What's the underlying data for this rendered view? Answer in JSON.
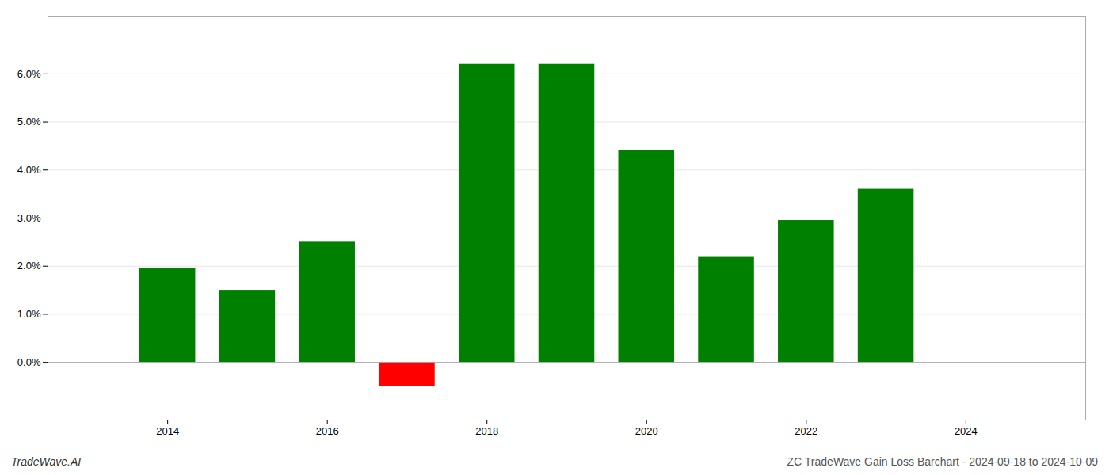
{
  "chart_data": {
    "type": "bar",
    "title": "ZC TradeWave Gain Loss Barchart - 2024-09-18 to 2024-10-09",
    "annotations": [
      "TradeWave.AI"
    ],
    "x": [
      2014,
      2015,
      2016,
      2017,
      2018,
      2019,
      2020,
      2021,
      2022,
      2023
    ],
    "values": [
      0.0195,
      0.015,
      0.025,
      -0.005,
      0.062,
      0.062,
      0.044,
      0.022,
      0.0295,
      0.036
    ],
    "colors": [
      "#008000",
      "#008000",
      "#008000",
      "#ff0000",
      "#008000",
      "#008000",
      "#008000",
      "#008000",
      "#008000",
      "#008000"
    ],
    "xlim": [
      2012.5,
      2025.5
    ],
    "xticks": [
      2014,
      2016,
      2018,
      2020,
      2022,
      2024
    ],
    "ylim": [
      -0.012,
      0.072
    ],
    "yticks": [
      {
        "value": 0.0,
        "label": "0.0%"
      },
      {
        "value": 0.01,
        "label": "1.0%"
      },
      {
        "value": 0.02,
        "label": "2.0%"
      },
      {
        "value": 0.03,
        "label": "3.0%"
      },
      {
        "value": 0.04,
        "label": "4.0%"
      },
      {
        "value": 0.05,
        "label": "5.0%"
      },
      {
        "value": 0.06,
        "label": "6.0%"
      }
    ],
    "grid": true
  }
}
